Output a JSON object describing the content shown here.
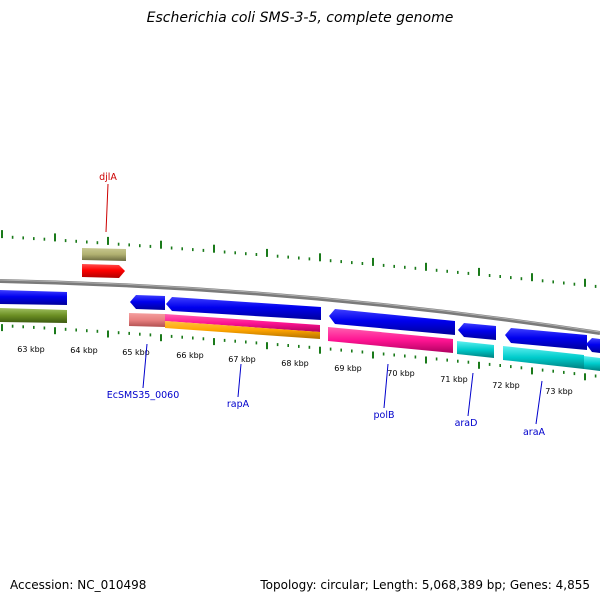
{
  "title": "Escherichia coli SMS-3-5, complete genome",
  "footer": {
    "accession": "Accession: NC_010498",
    "summary": "Topology: circular; Length: 5,068,389 bp; Genes: 4,855"
  },
  "tick_labels": [
    "63 kbp",
    "64 kbp",
    "65 kbp",
    "66 kbp",
    "67 kbp",
    "68 kbp",
    "69 kbp",
    "70 kbp",
    "71 kbp",
    "72 kbp",
    "73 kbp"
  ],
  "gene_labels": [
    {
      "name": "djlA",
      "color": "#cc0000"
    },
    {
      "name": "EcSMS35_0060",
      "color": "#0000cc"
    },
    {
      "name": "rapA",
      "color": "#0000cc"
    },
    {
      "name": "polB",
      "color": "#0000cc"
    },
    {
      "name": "araD",
      "color": "#0000cc"
    },
    {
      "name": "araA",
      "color": "#0000cc"
    }
  ],
  "colors": {
    "backbone": "#808080",
    "cds_forward": "#ff0000",
    "cds_reverse": "#0000ee",
    "tick_major": "#1a7a1a",
    "tick_minor": "#1a7a1a"
  }
}
